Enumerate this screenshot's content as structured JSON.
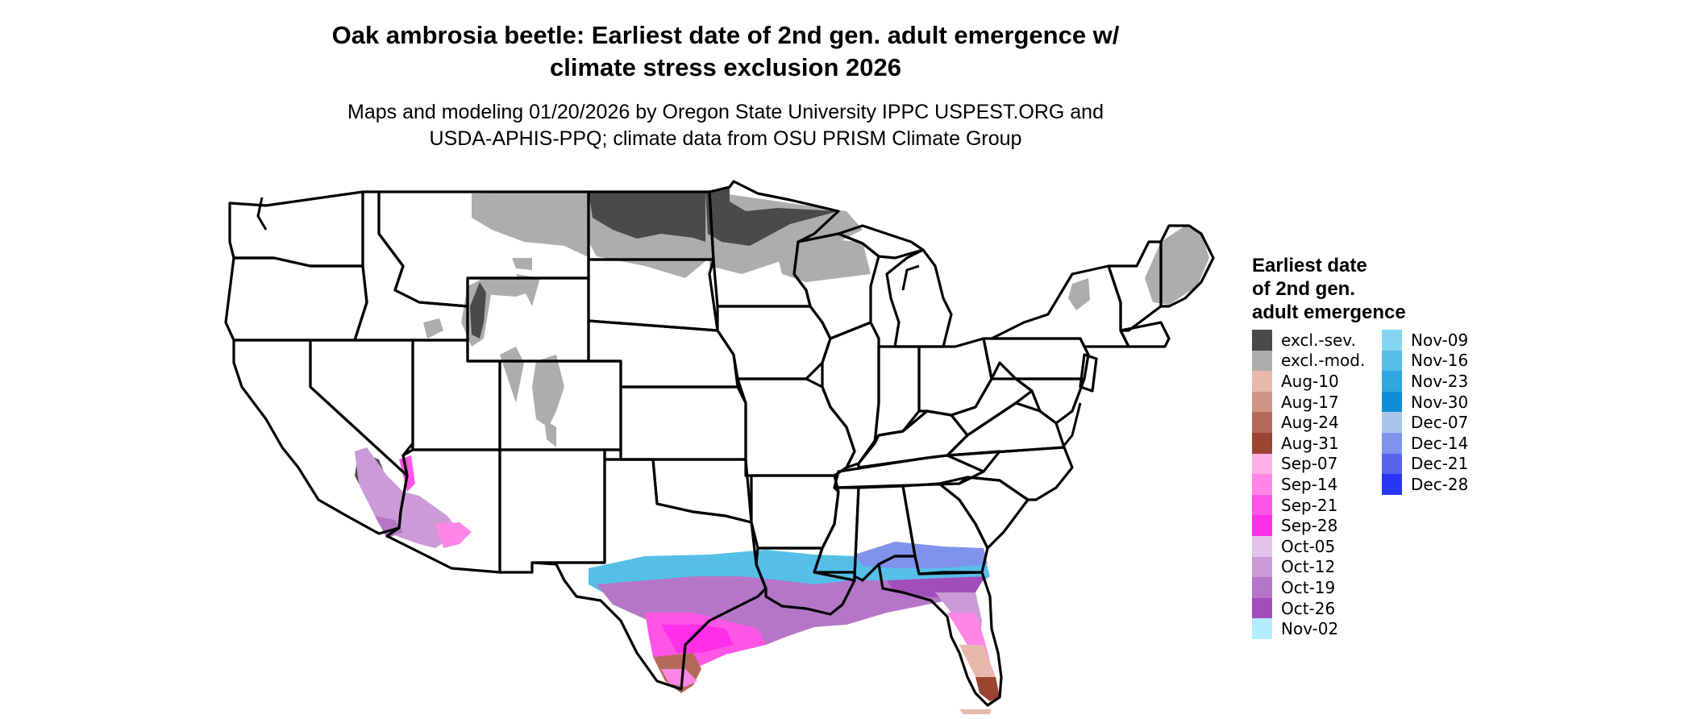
{
  "header": {
    "title_line1": "Oak ambrosia beetle: Earliest date of 2nd gen. adult emergence w/",
    "title_line2": "climate stress exclusion 2026",
    "subtitle_line1": "Maps and modeling 01/20/2026 by Oregon State University IPPC USPEST.ORG and",
    "subtitle_line2": "USDA-APHIS-PPQ; climate data from OSU PRISM Climate Group"
  },
  "legend": {
    "title_line1": "Earliest date",
    "title_line2": "of 2nd gen.",
    "title_line3": "adult emergence",
    "column1": [
      {
        "label": "excl.-sev.",
        "color": "#4a4a4a"
      },
      {
        "label": "excl.-mod.",
        "color": "#adadad"
      },
      {
        "label": "Aug-10",
        "color": "#e8b8ac"
      },
      {
        "label": "Aug-17",
        "color": "#cf9484"
      },
      {
        "label": "Aug-24",
        "color": "#b46a5a"
      },
      {
        "label": "Aug-31",
        "color": "#9a4432"
      },
      {
        "label": "Sep-07",
        "color": "#ffb0e6"
      },
      {
        "label": "Sep-14",
        "color": "#ff86e6"
      },
      {
        "label": "Sep-21",
        "color": "#ff55e6"
      },
      {
        "label": "Sep-28",
        "color": "#ff2ee8"
      },
      {
        "label": "Oct-05",
        "color": "#e3c4e9"
      },
      {
        "label": "Oct-12",
        "color": "#cc9ad6"
      },
      {
        "label": "Oct-19",
        "color": "#b676c8"
      },
      {
        "label": "Oct-26",
        "color": "#a24eba"
      },
      {
        "label": "Nov-02",
        "color": "#b3ecff"
      }
    ],
    "column2": [
      {
        "label": "Nov-09",
        "color": "#84d5f2"
      },
      {
        "label": "Nov-16",
        "color": "#56bfe8"
      },
      {
        "label": "Nov-23",
        "color": "#2fa6de"
      },
      {
        "label": "Nov-30",
        "color": "#0c8ed4"
      },
      {
        "label": "Dec-07",
        "color": "#a9c6ea"
      },
      {
        "label": "Dec-14",
        "color": "#7f92ec"
      },
      {
        "label": "Dec-21",
        "color": "#5664ee"
      },
      {
        "label": "Dec-28",
        "color": "#2a36f6"
      }
    ]
  }
}
